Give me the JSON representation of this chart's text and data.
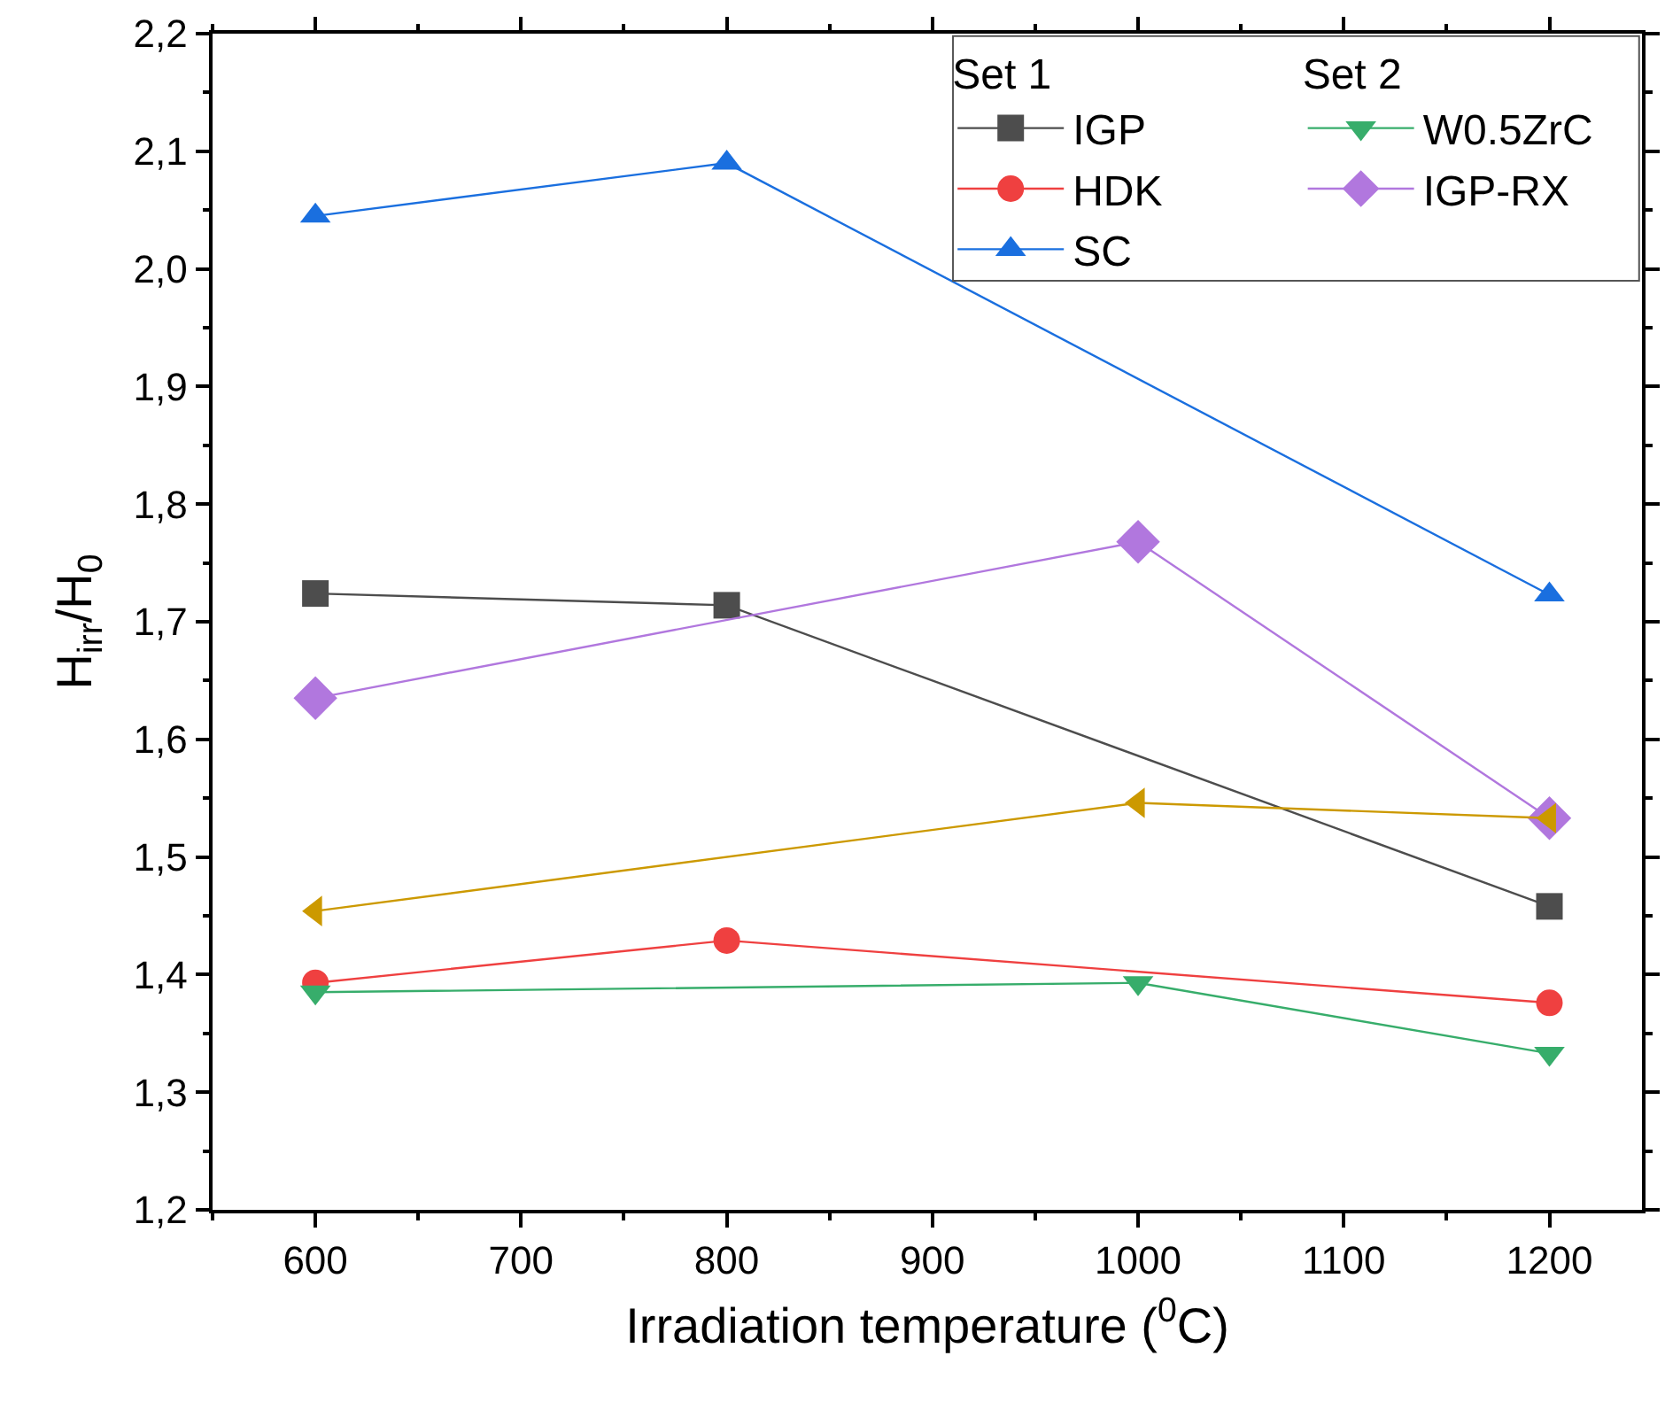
{
  "chart_data": {
    "type": "line",
    "xlabel": "Irradiation temperature ($^{0}$C)",
    "ylabel": "H$_{irr}$/H$_{0}$",
    "legend_title": [
      "Set 1",
      "Set 2"
    ],
    "legend": "top right",
    "xlim": [
      550,
      1245
    ],
    "xticks": [
      600,
      700,
      800,
      900,
      1000,
      1100,
      1200
    ],
    "ylim": [
      1.2,
      2.2
    ],
    "yticks": [
      {
        "value": 1.2,
        "label": "1,2"
      },
      {
        "value": 1.3,
        "label": "1,3"
      },
      {
        "value": 1.4,
        "label": "1,4"
      },
      {
        "value": 1.5,
        "label": "1,5"
      },
      {
        "value": 1.6,
        "label": "1,6"
      },
      {
        "value": 1.7,
        "label": "1,7"
      },
      {
        "value": 1.8,
        "label": "1,8"
      },
      {
        "value": 1.9,
        "label": "1,9"
      },
      {
        "value": 2.0,
        "label": "2,0"
      },
      {
        "value": 2.1,
        "label": "2,1"
      },
      {
        "value": 2.2,
        "label": "2,2"
      }
    ],
    "series": [
      {
        "name": "IGP",
        "color": "#4d4d4d",
        "marker": "square",
        "x": [
          600,
          800,
          1200
        ],
        "values": [
          1.724,
          1.714,
          1.458
        ]
      },
      {
        "name": "HDK",
        "color": "#ef4040",
        "marker": "circle",
        "x": [
          600,
          800,
          1200
        ],
        "values": [
          1.393,
          1.429,
          1.376
        ]
      },
      {
        "name": "SC",
        "color": "#1a6fdf",
        "marker": "triangle",
        "x": [
          600,
          800,
          1200
        ],
        "values": [
          2.045,
          2.09,
          1.723
        ]
      },
      {
        "name": "W0.5ZrC",
        "color": "#37ad6b",
        "marker": "triangle-down",
        "x": [
          600,
          1000,
          1200
        ],
        "values": [
          1.385,
          1.393,
          1.333
        ]
      },
      {
        "name": "IGP-RX",
        "color": "#b177de",
        "marker": "diamond",
        "x": [
          600,
          1000,
          1200
        ],
        "values": [
          1.635,
          1.768,
          1.533
        ]
      },
      {
        "color": "#cc9900",
        "marker": "triangle-left",
        "x": [
          600,
          1000,
          1200
        ],
        "values": [
          1.454,
          1.546,
          1.533
        ]
      }
    ]
  }
}
